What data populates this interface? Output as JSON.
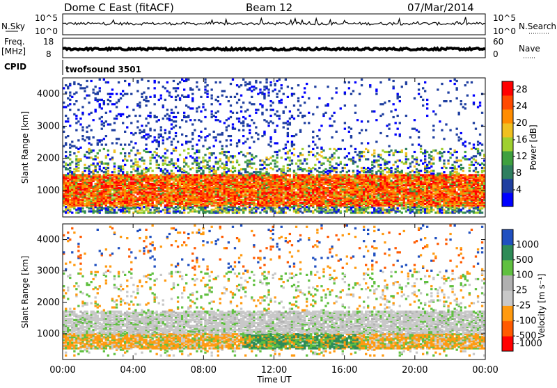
{
  "header": {
    "station": "Dome C East (fitACF)",
    "beam": "Beam 12",
    "date": "07/Mar/2014"
  },
  "status_panel": {
    "nsky_label": "N.Sky",
    "nsearch_label": "N.Search",
    "freq_label": "Freq.",
    "freq_unit": "[MHz]",
    "nave_label": "Nave",
    "cpid_label": "CPID",
    "cpid_value": "twofsound 3501",
    "left_ticks_top": [
      "10^5",
      "10^0"
    ],
    "right_ticks_top": [
      "10^5",
      "10^0"
    ],
    "left_ticks_freq": [
      "18",
      "8"
    ],
    "right_ticks_nave": [
      "60",
      "0"
    ]
  },
  "colors": {
    "power_scale": [
      "#0000ff",
      "#1f3fa0",
      "#2f7f5f",
      "#3fa03f",
      "#9fd030",
      "#f0c020",
      "#ff8c00",
      "#ff4a00",
      "#ff0000"
    ],
    "velocity_scale": [
      "#ff0000",
      "#ff5a00",
      "#ff9a10",
      "#c8c8c8",
      "#b0b0b0",
      "#60c040",
      "#2e8b57",
      "#2050c0"
    ]
  },
  "chart_data": [
    {
      "type": "heatmap",
      "title": "",
      "ylabel": "Slant Range [km]",
      "xlabel": "Time UT",
      "x_ticks": [
        "00:00",
        "04:00",
        "08:00",
        "12:00",
        "16:00",
        "20:00",
        "00:00"
      ],
      "y_ticks": [
        "1000",
        "2000",
        "3000",
        "4000"
      ],
      "ylim": [
        180,
        4500
      ],
      "colorbar": {
        "label": "Power [dB]",
        "ticks": [
          "4",
          "8",
          "12",
          "16",
          "20",
          "24",
          "28"
        ],
        "range": [
          0,
          30
        ]
      },
      "dominant_band_km": [
        500,
        1500
      ]
    },
    {
      "type": "heatmap",
      "title": "",
      "ylabel": "Slant Range [km]",
      "xlabel": "Time UT",
      "x_ticks": [
        "00:00",
        "04:00",
        "08:00",
        "12:00",
        "16:00",
        "20:00",
        "00:00"
      ],
      "y_ticks": [
        "1000",
        "2000",
        "3000",
        "4000"
      ],
      "ylim": [
        180,
        4500
      ],
      "colorbar": {
        "label": "Velocity [m s⁻¹]",
        "ticks": [
          "1000",
          "500",
          "100",
          "25",
          "-25",
          "-100",
          "-500",
          "-1000"
        ]
      }
    }
  ]
}
